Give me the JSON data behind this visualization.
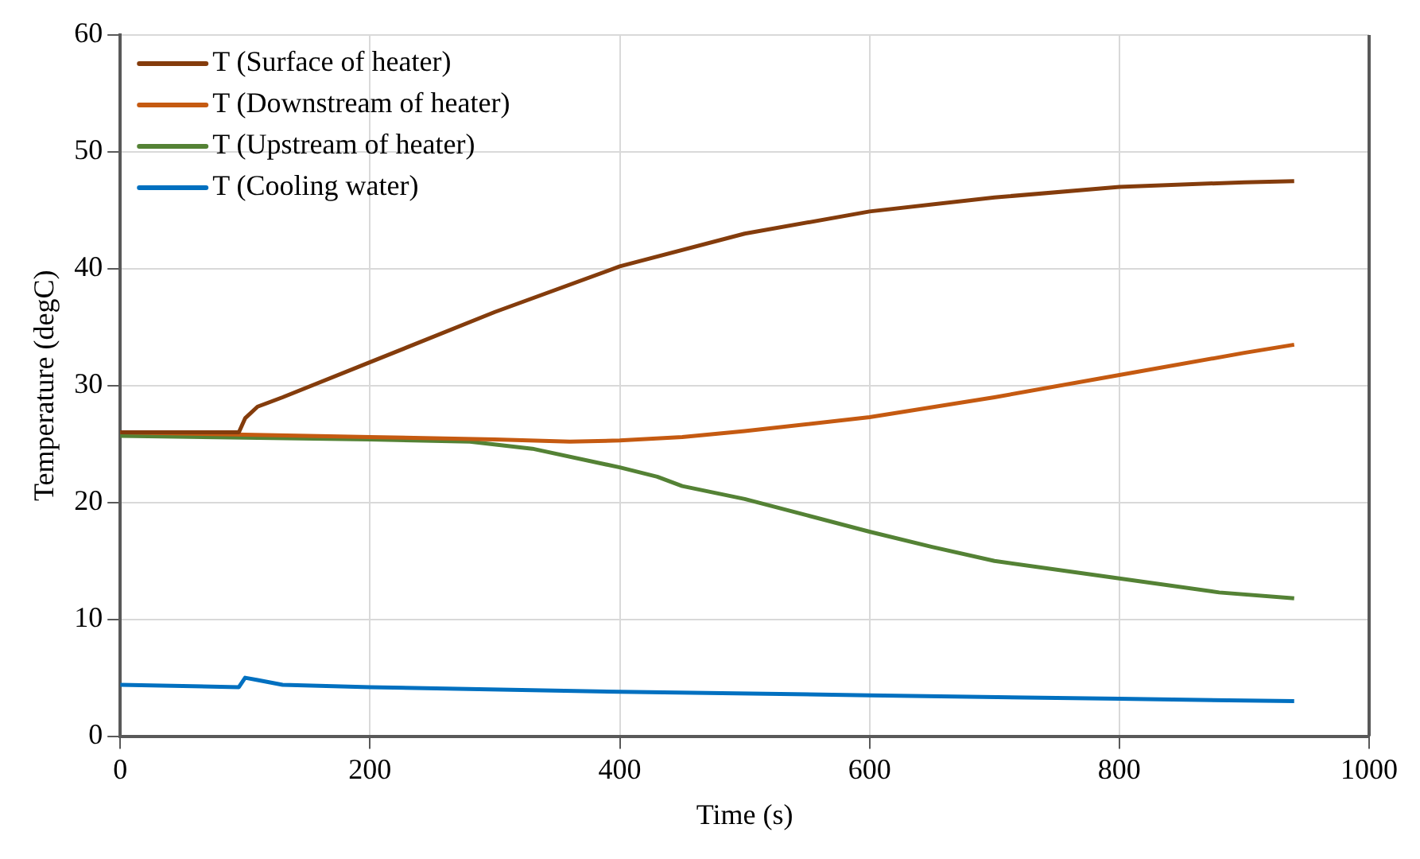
{
  "chart_data": {
    "type": "line",
    "xlabel": "Time (s)",
    "ylabel": "Temperature (degC)",
    "xlim": [
      0,
      1000
    ],
    "xticks": [
      0,
      200,
      400,
      600,
      800,
      1000
    ],
    "ylim": [
      0,
      60
    ],
    "yticks": [
      0,
      10,
      20,
      30,
      40,
      50,
      60
    ],
    "grid": true,
    "legend": "top left",
    "marker": "none",
    "line_style": "solid",
    "series": [
      {
        "name": "T (Surface of heater)",
        "color": "#843c0c",
        "x": [
          0,
          95,
          100,
          110,
          130,
          200,
          300,
          400,
          500,
          600,
          700,
          800,
          900,
          940
        ],
        "values": [
          26,
          26,
          27.2,
          28.2,
          29,
          32,
          36.3,
          40.2,
          43,
          44.9,
          46.1,
          47,
          47.4,
          47.5
        ]
      },
      {
        "name": "T (Downstream of heater)",
        "color": "#c55a11",
        "x": [
          0,
          100,
          200,
          300,
          360,
          400,
          450,
          500,
          600,
          700,
          800,
          900,
          940
        ],
        "values": [
          26,
          25.8,
          25.6,
          25.4,
          25.2,
          25.3,
          25.6,
          26.1,
          27.3,
          29,
          30.9,
          32.8,
          33.5
        ]
      },
      {
        "name": "T (Upstream of heater)",
        "color": "#548235",
        "x": [
          0,
          200,
          280,
          330,
          400,
          430,
          450,
          500,
          550,
          600,
          650,
          700,
          800,
          880,
          940
        ],
        "values": [
          25.7,
          25.4,
          25.2,
          24.6,
          23,
          22.2,
          21.4,
          20.3,
          18.9,
          17.5,
          16.2,
          15,
          13.5,
          12.3,
          11.8
        ]
      },
      {
        "name": "T (Cooling water)",
        "color": "#0070c0",
        "x": [
          0,
          95,
          100,
          110,
          130,
          200,
          400,
          600,
          800,
          940
        ],
        "values": [
          4.4,
          4.2,
          5,
          4.8,
          4.4,
          4.2,
          3.8,
          3.5,
          3.2,
          3
        ]
      }
    ]
  }
}
